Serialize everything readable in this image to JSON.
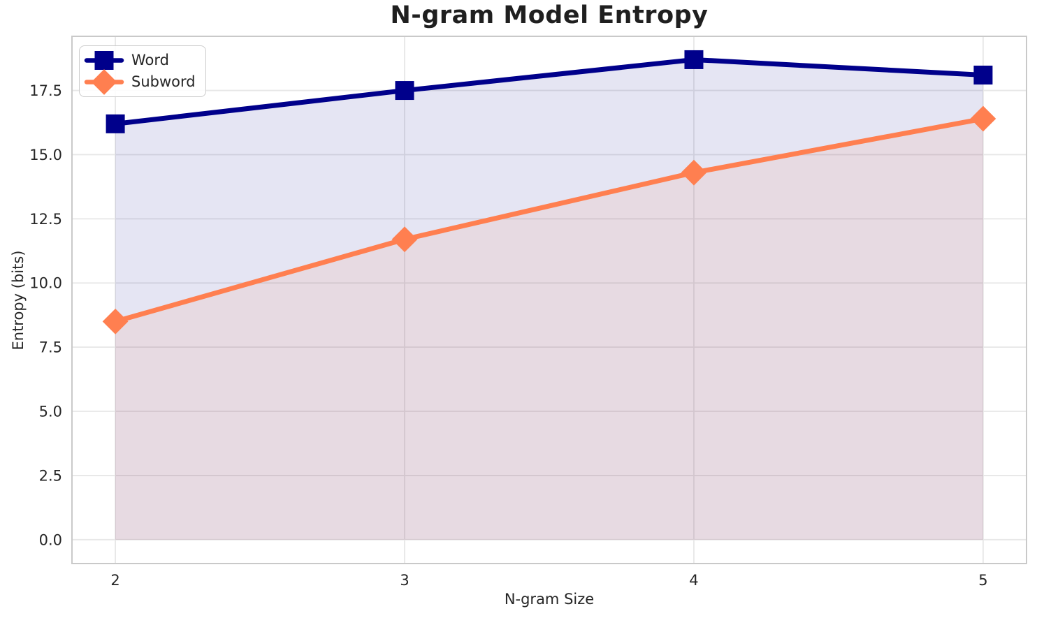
{
  "chart_data": {
    "type": "line",
    "title": "N-gram Model Entropy",
    "xlabel": "N-gram Size",
    "ylabel": "Entropy (bits)",
    "x": [
      2,
      3,
      4,
      5
    ],
    "series": [
      {
        "name": "Word",
        "color": "#00008B",
        "marker": "square",
        "values": [
          16.2,
          17.5,
          18.7,
          18.1
        ]
      },
      {
        "name": "Subword",
        "color": "#FF7F50",
        "marker": "diamond",
        "values": [
          8.5,
          11.7,
          14.3,
          16.4
        ]
      }
    ],
    "fill_to_zero": true,
    "fill_alpha": 0.1,
    "xlim": [
      1.85,
      5.15
    ],
    "ylim": [
      -0.93,
      19.61
    ],
    "xticks": [
      2,
      3,
      4,
      5
    ],
    "xtick_labels": [
      "2",
      "3",
      "4",
      "5"
    ],
    "yticks": [
      0,
      2.5,
      5,
      7.5,
      10,
      12.5,
      15,
      17.5
    ],
    "ytick_labels": [
      "0.0",
      "2.5",
      "5.0",
      "7.5",
      "10.0",
      "12.5",
      "15.0",
      "17.5"
    ],
    "grid": true,
    "legend_position": "upper left"
  },
  "theme": {
    "background": "#FFFFFF",
    "grid_color": "#E7E7E7",
    "spine_color": "#C9C9C9",
    "text_color": "#262626",
    "title_color": "#1F1F1F",
    "legend_border": "#CCCCCC"
  }
}
